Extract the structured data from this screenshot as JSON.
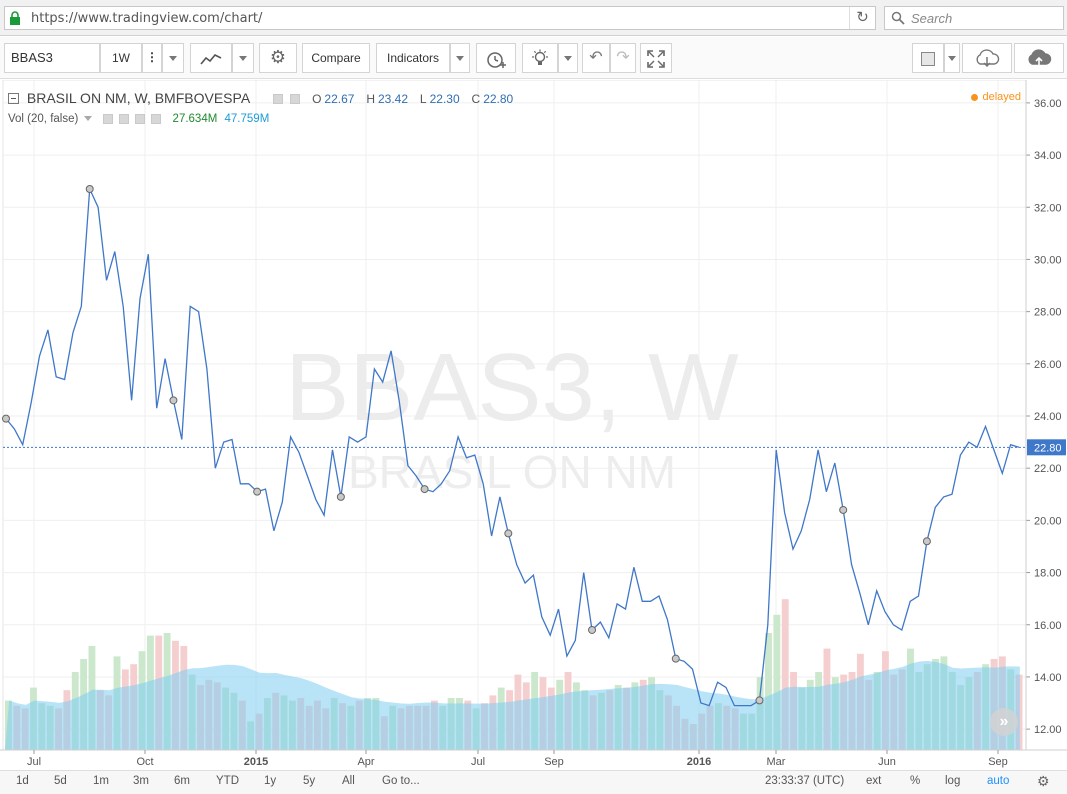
{
  "browser": {
    "url": "https://www.tradingview.com/chart/",
    "search_placeholder": "Search",
    "reload_icon": "reload-icon"
  },
  "toolbar": {
    "symbol": "BBAS3",
    "interval": "1W",
    "compare_label": "Compare",
    "indicators_label": "Indicators"
  },
  "legend": {
    "title": "BRASIL ON NM, W, BMFBOVESPA",
    "o_label": "O",
    "o_value": "22.67",
    "h_label": "H",
    "h_value": "23.42",
    "l_label": "L",
    "l_value": "22.30",
    "c_label": "C",
    "c_value": "22.80",
    "volume_label": "Vol (20, false)",
    "volume_value": "27.634M",
    "volume_ma_value": "47.759M",
    "status": "delayed"
  },
  "watermark": {
    "symbol_line": "BBAS3, W",
    "name_line": "BRASIL   ON   NM"
  },
  "price_axis": {
    "ticks": [
      "36.00",
      "34.00",
      "32.00",
      "30.00",
      "28.00",
      "26.00",
      "24.00",
      "22.00",
      "20.00",
      "18.00",
      "16.00",
      "14.00",
      "12.00"
    ],
    "last_price_label": "22.80"
  },
  "time_axis": {
    "labels": [
      "Jul",
      "Oct",
      "2015",
      "Apr",
      "Jul",
      "Sep",
      "2016",
      "Mar",
      "Jun",
      "Sep"
    ]
  },
  "bottom_bar": {
    "ranges": [
      "1d",
      "5d",
      "1m",
      "3m",
      "6m",
      "YTD",
      "1y",
      "5y",
      "All"
    ],
    "goto_label": "Go to...",
    "clock": "23:33:37 (UTC)",
    "ext_label": "ext",
    "percent_label": "%",
    "log_label": "log",
    "auto_label": "auto"
  },
  "colors": {
    "price_line": "#3f77c9",
    "volume_up": "#c8e6c9",
    "volume_down": "#f4cccc",
    "volume_area": "#7fcdf0",
    "accent_orange": "#f7931e",
    "auto_active": "#1e90ff"
  },
  "chart_data": {
    "type": "line",
    "y_range": [
      11.2,
      36.8
    ],
    "price_series": [
      23.9,
      23.5,
      22.9,
      24.5,
      26.3,
      27.3,
      25.5,
      25.4,
      27.2,
      28.2,
      32.7,
      32.0,
      29.2,
      30.3,
      28.2,
      24.6,
      28.5,
      30.2,
      24.3,
      26.2,
      24.6,
      23.1,
      28.2,
      28.0,
      25.8,
      22.0,
      23.0,
      23.1,
      21.4,
      21.4,
      21.1,
      21.2,
      19.6,
      20.7,
      23.2,
      22.6,
      21.7,
      20.8,
      20.2,
      22.7,
      20.9,
      23.2,
      23.0,
      23.2,
      25.8,
      25.3,
      26.5,
      24.5,
      22.1,
      21.7,
      21.2,
      21.1,
      21.4,
      21.9,
      23.2,
      22.4,
      22.5,
      21.4,
      19.4,
      20.9,
      19.5,
      18.3,
      17.6,
      17.9,
      16.3,
      15.6,
      16.6,
      14.8,
      15.4,
      18.0,
      15.8,
      16.1,
      15.5,
      16.8,
      16.6,
      18.2,
      16.9,
      16.9,
      17.1,
      16.2,
      14.7,
      14.6,
      14.3,
      13.0,
      12.9,
      13.8,
      13.6,
      12.9,
      12.9,
      12.9,
      13.1,
      16.0,
      22.7,
      20.3,
      18.9,
      19.6,
      20.8,
      22.7,
      21.1,
      22.2,
      20.4,
      18.3,
      17.2,
      16.0,
      17.3,
      16.5,
      16.0,
      15.8,
      16.9,
      17.1,
      19.2,
      20.5,
      20.9,
      21.0,
      22.5,
      23.0,
      22.8,
      23.6,
      22.7,
      21.8,
      22.9,
      22.8
    ],
    "marker_indices": [
      0,
      10,
      20,
      30,
      40,
      50,
      60,
      70,
      80,
      90,
      100,
      110
    ],
    "volume_bars": [
      19,
      17,
      16,
      24,
      18,
      17,
      16,
      23,
      30,
      35,
      40,
      23,
      21,
      36,
      31,
      33,
      38,
      44,
      44,
      45,
      42,
      40,
      29,
      25,
      27,
      26,
      24,
      22,
      19,
      11,
      14,
      20,
      22,
      21,
      19,
      20,
      17,
      19,
      16,
      20,
      18,
      17,
      19,
      20,
      20,
      13,
      17,
      16,
      17,
      17,
      17,
      19,
      17,
      20,
      20,
      19,
      16,
      18,
      21,
      24,
      23,
      29,
      26,
      30,
      28,
      24,
      27,
      30,
      26,
      23,
      21,
      22,
      23,
      25,
      24,
      26,
      27,
      28,
      23,
      21,
      17,
      12,
      10,
      14,
      17,
      18,
      17,
      16,
      14,
      14,
      28,
      45,
      52,
      58,
      30,
      24,
      27,
      30,
      39,
      28,
      29,
      30,
      37,
      27,
      30,
      38,
      29,
      31,
      39,
      30,
      33,
      35,
      36,
      30,
      25,
      28,
      30,
      33,
      35,
      36,
      31,
      29
    ]
  }
}
